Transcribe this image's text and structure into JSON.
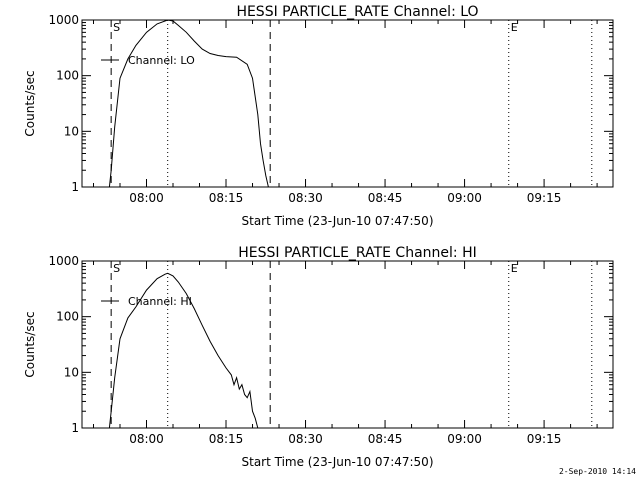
{
  "footer": {
    "timestamp": "2-Sep-2010 14:14"
  },
  "chart_data": [
    {
      "type": "line",
      "title": "HESSI PARTICLE_RATE Channel: LO",
      "xlabel": "Start Time (23-Jun-10 07:47:50)",
      "ylabel": "Counts/sec",
      "yscale": "log",
      "ylim": [
        1,
        1000
      ],
      "xlim": [
        "07:47:50",
        "09:28:00"
      ],
      "x_ticks": [
        "08:00",
        "08:15",
        "08:30",
        "08:45",
        "09:00",
        "09:15"
      ],
      "y_ticks": [
        "1",
        "10",
        "100",
        "1000"
      ],
      "legend": {
        "label": "Channel: LO",
        "placement": "top-left"
      },
      "markers": [
        {
          "time": "07:53:20",
          "style": "dashed",
          "label": "S"
        },
        {
          "time": "08:04:00",
          "style": "dotted",
          "label": ""
        },
        {
          "time": "08:23:20",
          "style": "dashed",
          "label": ""
        },
        {
          "time": "09:08:20",
          "style": "dotted",
          "label": "E"
        },
        {
          "time": "09:24:00",
          "style": "dotted",
          "label": ""
        }
      ],
      "series": [
        {
          "name": "Channel: LO",
          "x": [
            "07:53:00",
            "07:53:20",
            "07:54:00",
            "07:55:00",
            "07:56:30",
            "07:58:00",
            "08:00:00",
            "08:02:00",
            "08:04:00",
            "08:05:00",
            "08:06:00",
            "08:07:30",
            "08:09:00",
            "08:10:30",
            "08:12:00",
            "08:13:30",
            "08:15:00",
            "08:17:00",
            "08:19:00",
            "08:20:00",
            "08:21:00",
            "08:21:30",
            "08:22:00",
            "08:22:30",
            "08:23:00"
          ],
          "y": [
            1,
            2,
            12,
            90,
            200,
            350,
            600,
            850,
            1000,
            960,
            800,
            600,
            420,
            300,
            250,
            230,
            220,
            215,
            160,
            90,
            20,
            6,
            3,
            1.6,
            1
          ]
        }
      ]
    },
    {
      "type": "line",
      "title": "HESSI PARTICLE_RATE Channel: HI",
      "xlabel": "Start Time (23-Jun-10 07:47:50)",
      "ylabel": "Counts/sec",
      "yscale": "log",
      "ylim": [
        1,
        1000
      ],
      "xlim": [
        "07:47:50",
        "09:28:00"
      ],
      "x_ticks": [
        "08:00",
        "08:15",
        "08:30",
        "08:45",
        "09:00",
        "09:15"
      ],
      "y_ticks": [
        "1",
        "10",
        "100",
        "1000"
      ],
      "legend": {
        "label": "Channel: HI",
        "placement": "top-left"
      },
      "markers": [
        {
          "time": "07:53:20",
          "style": "dashed",
          "label": "S"
        },
        {
          "time": "08:04:00",
          "style": "dotted",
          "label": ""
        },
        {
          "time": "08:23:20",
          "style": "dashed",
          "label": ""
        },
        {
          "time": "09:08:20",
          "style": "dotted",
          "label": "E"
        },
        {
          "time": "09:24:00",
          "style": "dotted",
          "label": ""
        }
      ],
      "series": [
        {
          "name": "Channel: HI",
          "x": [
            "07:53:00",
            "07:53:20",
            "07:54:00",
            "07:55:00",
            "07:56:30",
            "07:58:00",
            "08:00:00",
            "08:02:00",
            "08:03:30",
            "08:04:00",
            "08:05:00",
            "08:06:00",
            "08:07:30",
            "08:09:00",
            "08:10:30",
            "08:12:00",
            "08:13:30",
            "08:15:00",
            "08:16:00",
            "08:16:30",
            "08:17:00",
            "08:17:30",
            "08:18:00",
            "08:18:30",
            "08:19:00",
            "08:19:30",
            "08:20:00",
            "08:20:30",
            "08:21:00"
          ],
          "y": [
            1,
            2,
            8,
            40,
            95,
            150,
            300,
            480,
            580,
            600,
            540,
            420,
            260,
            140,
            70,
            36,
            20,
            12,
            9,
            6,
            8,
            5,
            6,
            4,
            3.5,
            4.5,
            2,
            1.5,
            1
          ]
        }
      ]
    }
  ]
}
